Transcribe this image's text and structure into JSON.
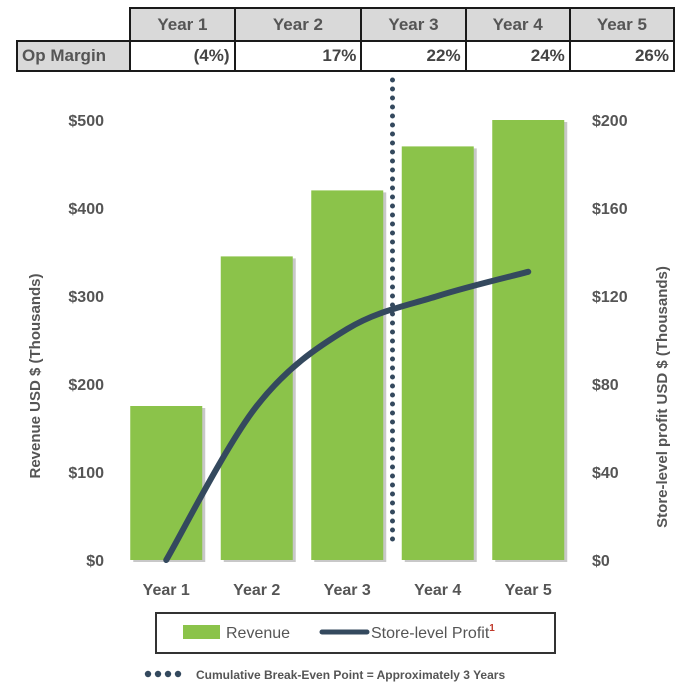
{
  "table": {
    "headers": [
      "Year 1",
      "Year 2",
      "Year 3",
      "Year 4",
      "Year 5"
    ],
    "row_label": "Op Margin",
    "values": [
      "(4%)",
      "17%",
      "22%",
      "24%",
      "26%"
    ]
  },
  "chart_data": {
    "type": "bar",
    "categories": [
      "Year 1",
      "Year 2",
      "Year 3",
      "Year 4",
      "Year 5"
    ],
    "series": [
      {
        "name": "Revenue",
        "type": "bar",
        "axis": "left",
        "values": [
          175,
          345,
          420,
          470,
          500
        ],
        "color": "#8bc34a"
      },
      {
        "name": "Store-level Profit",
        "type": "line",
        "axis": "right",
        "values": [
          0,
          70,
          105,
          120,
          131
        ],
        "color": "#34495e"
      }
    ],
    "ylabel": "Revenue USD $ (Thousands)",
    "y2label": "Store-level profit USD $ (Thousands)",
    "ylim": [
      0,
      500
    ],
    "y2lim": [
      0,
      200
    ],
    "yticks": [
      0,
      100,
      200,
      300,
      400,
      500
    ],
    "ytick_labels": [
      "$0",
      "$100",
      "$200",
      "$300",
      "$400",
      "$500"
    ],
    "y2ticks": [
      0,
      40,
      80,
      120,
      160,
      200
    ],
    "y2tick_labels": [
      "$0",
      "$40",
      "$80",
      "$120",
      "$160",
      "$200"
    ],
    "break_even_x": 3.5,
    "legend": {
      "placement": "bottom",
      "revenue_label": "Revenue",
      "profit_label": "Store-level Profit",
      "footnote_marker": "1"
    },
    "annotation": "Cumulative Break-Even Point = Approximately 3 Years",
    "grid": false
  },
  "colors": {
    "bar": "#8bc34a",
    "line": "#34495e",
    "text": "#555555",
    "header_fill": "#d9d9d9",
    "footnote": "#c0392b"
  }
}
